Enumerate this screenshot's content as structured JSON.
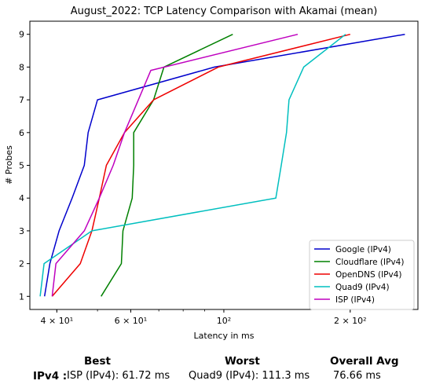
{
  "chart_data": {
    "type": "line",
    "title": "August_2022: TCP Latency Comparison with Akamai (mean)",
    "xlabel": "Latency in ms",
    "ylabel": "# Probes",
    "xscale": "log",
    "xlim": [
      34.5,
      290
    ],
    "ylim": [
      0.6,
      9.4
    ],
    "yticks": [
      1,
      2,
      3,
      4,
      5,
      6,
      7,
      8,
      9
    ],
    "xticks": [
      {
        "value": 40,
        "label": "4 × 10¹"
      },
      {
        "value": 60,
        "label": "6 × 10¹"
      },
      {
        "value": 100,
        "label": "10²"
      },
      {
        "value": 200,
        "label": "2 × 10²"
      }
    ],
    "grid": false,
    "legend": "bottom-right",
    "series": [
      {
        "name": "Google (IPv4)",
        "color": "#0000cc",
        "points": [
          [
            37.4,
            1
          ],
          [
            38.5,
            2
          ],
          [
            40.5,
            3
          ],
          [
            43.5,
            4
          ],
          [
            46.5,
            5
          ],
          [
            47.5,
            6
          ],
          [
            50,
            7
          ],
          [
            95,
            8
          ],
          [
            270,
            9
          ]
        ]
      },
      {
        "name": "Cloudflare (IPv4)",
        "color": "#008000",
        "points": [
          [
            51,
            1
          ],
          [
            57,
            2
          ],
          [
            57.5,
            3
          ],
          [
            60.5,
            4
          ],
          [
            61,
            5
          ],
          [
            61,
            6
          ],
          [
            68,
            7
          ],
          [
            72,
            8
          ],
          [
            105,
            9
          ]
        ]
      },
      {
        "name": "OpenDNS (IPv4)",
        "color": "#ee0000",
        "points": [
          [
            39,
            1
          ],
          [
            45.5,
            2
          ],
          [
            48.5,
            3
          ],
          [
            50.5,
            4
          ],
          [
            52.5,
            5
          ],
          [
            58,
            6
          ],
          [
            68,
            7
          ],
          [
            97,
            8
          ],
          [
            200,
            9
          ]
        ]
      },
      {
        "name": "Quad9 (IPv4)",
        "color": "#00bfbf",
        "points": [
          [
            36.5,
            1
          ],
          [
            37.3,
            2
          ],
          [
            48.5,
            3
          ],
          [
            133,
            4
          ],
          [
            137,
            5
          ],
          [
            141,
            6
          ],
          [
            143,
            7
          ],
          [
            155,
            8
          ],
          [
            195,
            9
          ]
        ]
      },
      {
        "name": "ISP (IPv4)",
        "color": "#bf00bf",
        "points": [
          [
            39,
            1
          ],
          [
            39.8,
            2
          ],
          [
            46.5,
            3
          ],
          [
            50.5,
            4
          ],
          [
            54.5,
            5
          ],
          [
            58,
            6
          ],
          [
            67,
            7.9
          ],
          [
            150,
            9
          ]
        ]
      }
    ]
  },
  "summary": {
    "best_label": "Best",
    "worst_label": "Worst",
    "avg_label": "Overall Avg",
    "row_label": "IPv4 :",
    "best_value": "ISP (IPv4): 61.72 ms",
    "worst_value": "Quad9 (IPv4): 111.3 ms",
    "avg_value": "76.66 ms"
  }
}
